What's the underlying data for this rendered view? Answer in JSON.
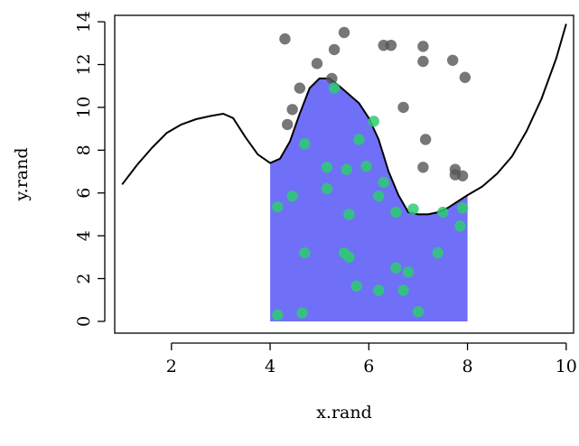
{
  "chart_data": {
    "type": "scatter",
    "title": "",
    "xlabel": "x.rand",
    "ylabel": "y.rand",
    "xlim": [
      0.85,
      10.15
    ],
    "ylim": [
      -0.55,
      14.3
    ],
    "x_ticks": [
      2,
      4,
      6,
      8,
      10
    ],
    "y_ticks": [
      0,
      2,
      4,
      6,
      8,
      10,
      12,
      14
    ],
    "grid": false,
    "legend": "none",
    "colors": {
      "points_outside": "#555555",
      "points_inside": "#2ecc71",
      "fill": "#6f6ff8",
      "curve": "#000000"
    },
    "shaded_region": {
      "x_from": 4,
      "x_to": 8,
      "y_from": 0
    },
    "curve": {
      "x": [
        1.0,
        1.3,
        1.6,
        1.9,
        2.2,
        2.5,
        2.8,
        3.05,
        3.25,
        3.5,
        3.75,
        4.0,
        4.2,
        4.4,
        4.6,
        4.8,
        5.0,
        5.2,
        5.4,
        5.6,
        5.8,
        6.0,
        6.2,
        6.4,
        6.6,
        6.8,
        7.0,
        7.2,
        7.4,
        7.6,
        7.8,
        8.0,
        8.3,
        8.6,
        8.9,
        9.2,
        9.5,
        9.8,
        10.0
      ],
      "y": [
        6.4,
        7.3,
        8.1,
        8.8,
        9.2,
        9.45,
        9.6,
        9.7,
        9.5,
        8.6,
        7.8,
        7.4,
        7.6,
        8.4,
        9.7,
        10.9,
        11.35,
        11.35,
        11.0,
        10.6,
        10.2,
        9.5,
        8.5,
        7.0,
        5.9,
        5.1,
        5.0,
        5.0,
        5.1,
        5.3,
        5.6,
        5.9,
        6.3,
        6.9,
        7.7,
        8.9,
        10.4,
        12.3,
        13.9
      ]
    },
    "points_outside": [
      {
        "x": 4.3,
        "y": 13.2
      },
      {
        "x": 5.5,
        "y": 13.5
      },
      {
        "x": 5.3,
        "y": 12.7
      },
      {
        "x": 6.3,
        "y": 12.9
      },
      {
        "x": 6.45,
        "y": 12.9
      },
      {
        "x": 7.1,
        "y": 12.85
      },
      {
        "x": 7.1,
        "y": 12.15
      },
      {
        "x": 7.7,
        "y": 12.2
      },
      {
        "x": 7.95,
        "y": 11.4
      },
      {
        "x": 4.95,
        "y": 12.05
      },
      {
        "x": 5.25,
        "y": 11.35
      },
      {
        "x": 4.6,
        "y": 10.9
      },
      {
        "x": 4.45,
        "y": 9.9
      },
      {
        "x": 4.35,
        "y": 9.2
      },
      {
        "x": 6.7,
        "y": 10.0
      },
      {
        "x": 7.15,
        "y": 8.5
      },
      {
        "x": 7.1,
        "y": 7.2
      },
      {
        "x": 7.75,
        "y": 7.1
      },
      {
        "x": 7.75,
        "y": 6.85
      },
      {
        "x": 7.9,
        "y": 6.8
      }
    ],
    "points_inside": [
      {
        "x": 5.3,
        "y": 10.9
      },
      {
        "x": 6.1,
        "y": 9.35
      },
      {
        "x": 4.7,
        "y": 8.3
      },
      {
        "x": 5.8,
        "y": 8.5
      },
      {
        "x": 5.15,
        "y": 7.2
      },
      {
        "x": 5.55,
        "y": 7.1
      },
      {
        "x": 5.95,
        "y": 7.25
      },
      {
        "x": 5.15,
        "y": 6.2
      },
      {
        "x": 4.45,
        "y": 5.85
      },
      {
        "x": 6.2,
        "y": 5.85
      },
      {
        "x": 6.3,
        "y": 6.5
      },
      {
        "x": 4.15,
        "y": 5.35
      },
      {
        "x": 6.55,
        "y": 5.1
      },
      {
        "x": 6.9,
        "y": 5.25
      },
      {
        "x": 7.5,
        "y": 5.1
      },
      {
        "x": 7.9,
        "y": 5.3
      },
      {
        "x": 5.6,
        "y": 5.0
      },
      {
        "x": 7.85,
        "y": 4.45
      },
      {
        "x": 4.7,
        "y": 3.2
      },
      {
        "x": 5.5,
        "y": 3.2
      },
      {
        "x": 5.6,
        "y": 3.0
      },
      {
        "x": 7.4,
        "y": 3.2
      },
      {
        "x": 6.55,
        "y": 2.5
      },
      {
        "x": 6.8,
        "y": 2.3
      },
      {
        "x": 5.75,
        "y": 1.65
      },
      {
        "x": 6.2,
        "y": 1.45
      },
      {
        "x": 6.7,
        "y": 1.45
      },
      {
        "x": 4.15,
        "y": 0.3
      },
      {
        "x": 4.65,
        "y": 0.4
      },
      {
        "x": 7.0,
        "y": 0.45
      }
    ]
  }
}
